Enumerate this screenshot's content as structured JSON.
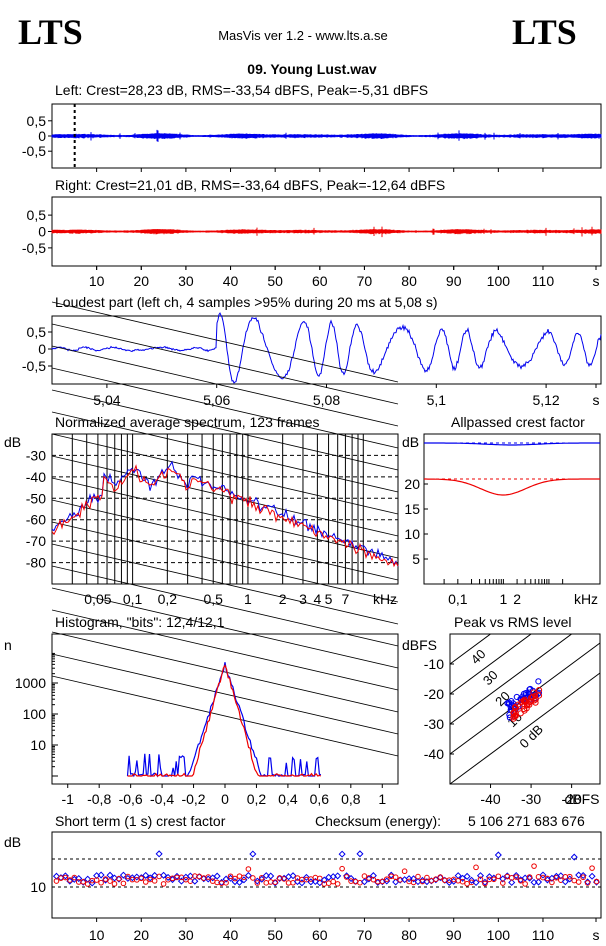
{
  "header": {
    "logo_left": "LTS",
    "logo_right": "LTS",
    "app_title": "MasVis ver 1.2 - www.lts.a.se",
    "file_name": "09. Young Lust.wav"
  },
  "colors": {
    "left": "#0000ee",
    "right": "#ee0000",
    "grid": "#000000"
  },
  "chart_data": [
    {
      "type": "line",
      "id": "left-waveform",
      "title": "Left: Crest=28,23 dB, RMS=-33,54 dBFS, Peak=-5,31 dBFS",
      "series": [
        {
          "name": "Left",
          "color": "#0000ee"
        }
      ],
      "xlim": [
        0,
        123
      ],
      "ylim": [
        -1,
        1
      ],
      "yticks": [
        "0,5",
        "0",
        "-0,5"
      ],
      "marker_x": 5.08
    },
    {
      "type": "line",
      "id": "right-waveform",
      "title": "Right: Crest=21,01 dB, RMS=-33,64 dBFS, Peak=-12,64 dBFS",
      "series": [
        {
          "name": "Right",
          "color": "#ee0000"
        }
      ],
      "xlim": [
        0,
        123
      ],
      "ylim": [
        -1,
        1
      ],
      "yticks": [
        "0,5",
        "0",
        "-0,5"
      ],
      "xticks": [
        "10",
        "20",
        "30",
        "40",
        "50",
        "60",
        "70",
        "80",
        "90",
        "100",
        "110",
        "s"
      ]
    },
    {
      "type": "line",
      "id": "loudest-part",
      "title": "Loudest part (left  ch, 4 samples >95% during 20 ms at 5,08 s)",
      "series": [
        {
          "name": "Left",
          "color": "#0000ee"
        }
      ],
      "xlim": [
        5.03,
        5.13
      ],
      "ylim": [
        -1,
        1
      ],
      "yticks": [
        "0,5",
        "0",
        "-0,5"
      ],
      "xticks": [
        "5,04",
        "5,06",
        "5,08",
        "5,1",
        "5,12",
        "s"
      ]
    },
    {
      "type": "line",
      "id": "spectrum",
      "title": "Normalized average spectrum, 123 frames",
      "ylabel": "dB",
      "xlabel": "kHz",
      "xscale": "log",
      "ylim": [
        -90,
        -20
      ],
      "yticks": [
        "-30",
        "-40",
        "-50",
        "-60",
        "-70",
        "-80"
      ],
      "xticks": [
        "0,05",
        "0,1",
        "0,2",
        "0,5",
        "1",
        "2",
        "3",
        "4",
        "5",
        "7",
        "kHz"
      ]
    },
    {
      "type": "line",
      "id": "allpassed-crest",
      "title": "Allpassed crest factor",
      "ylabel": "dB",
      "xlabel": "kHz",
      "xscale": "log",
      "ylim": [
        0,
        30
      ],
      "yticks": [
        "20",
        "15",
        "10",
        "5"
      ],
      "xticks": [
        "0,1",
        "1",
        "2",
        "kHz"
      ],
      "series": [
        {
          "name": "Left",
          "color": "#0000ee",
          "level": 28.2
        },
        {
          "name": "Right",
          "color": "#ee0000",
          "level": 21.0
        }
      ]
    },
    {
      "type": "line",
      "id": "histogram",
      "title": "Histogram, \"bits\": 12,4/12,1",
      "ylabel": "n",
      "yscale": "log",
      "xlim": [
        -1.1,
        1.1
      ],
      "yticks": [
        "1000",
        "100",
        "10"
      ],
      "xticks": [
        "-1",
        "-0,8",
        "-0,6",
        "-0,4",
        "-0,2",
        "0",
        "0,2",
        "0,4",
        "0,6",
        "0,8",
        "1"
      ]
    },
    {
      "type": "scatter",
      "id": "peak-vs-rms",
      "title": "Peak vs RMS level",
      "ylabel": "dBFS",
      "xlabel": "dBFS",
      "xlim": [
        -50,
        -13
      ],
      "ylim": [
        -50,
        0
      ],
      "yticks": [
        "-10",
        "-20",
        "-30",
        "-40"
      ],
      "xticks": [
        "-40",
        "-30",
        "-20",
        "dBFS"
      ],
      "crest_lines": [
        "40",
        "30",
        "20",
        "10",
        "0 dB"
      ]
    },
    {
      "type": "scatter",
      "id": "short-term-crest",
      "title": "Short term (1 s) crest factor",
      "ylabel": "dB",
      "xlim": [
        0,
        123
      ],
      "yticks": [
        "10"
      ],
      "xticks": [
        "10",
        "20",
        "30",
        "40",
        "50",
        "60",
        "70",
        "80",
        "90",
        "100",
        "110",
        "s"
      ]
    }
  ],
  "checksum": {
    "label": "Checksum (energy):",
    "value": "5 106 271 683 676"
  }
}
